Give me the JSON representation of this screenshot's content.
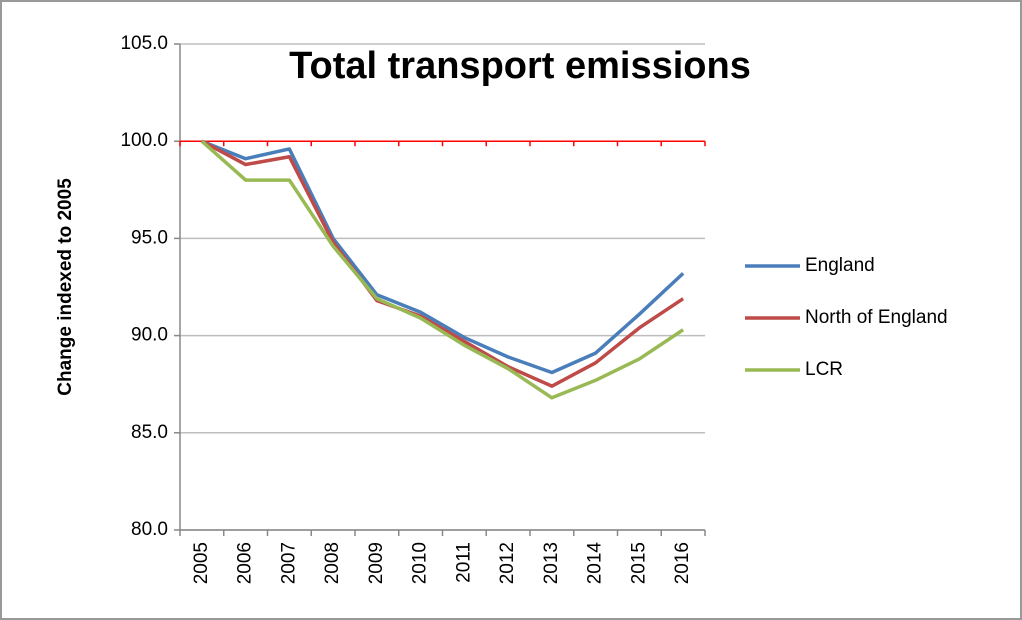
{
  "chart_data": {
    "type": "line",
    "title": "Total transport emissions",
    "y_label": "Change indexed to 2005",
    "categories": [
      "2005",
      "2006",
      "2007",
      "2008",
      "2009",
      "2010",
      "2011",
      "2012",
      "2013",
      "2014",
      "2015",
      "2016"
    ],
    "series": [
      {
        "name": "England",
        "color": "#4a7ebb",
        "values": [
          100,
          99.1,
          99.6,
          95.0,
          92.1,
          91.2,
          89.9,
          88.9,
          88.1,
          89.1,
          91.1,
          93.2
        ]
      },
      {
        "name": "North of England",
        "color": "#be4b48",
        "values": [
          100,
          98.8,
          99.2,
          94.8,
          91.8,
          91.0,
          89.7,
          88.4,
          87.4,
          88.6,
          90.4,
          91.9
        ]
      },
      {
        "name": "LCR",
        "color": "#98b954",
        "values": [
          100,
          98.0,
          98.0,
          94.6,
          91.9,
          90.9,
          89.5,
          88.3,
          86.8,
          87.7,
          88.8,
          90.3
        ]
      }
    ],
    "reference_line": {
      "value": 100,
      "color": "#ff0000"
    },
    "ylim": [
      80,
      105
    ],
    "yticks": [
      {
        "value": 80,
        "label": "80.0"
      },
      {
        "value": 85,
        "label": "85.0"
      },
      {
        "value": 90,
        "label": "90.0"
      },
      {
        "value": 95,
        "label": "95.0"
      },
      {
        "value": 100,
        "label": "100.0"
      },
      {
        "value": 105,
        "label": "105.0"
      }
    ],
    "grid": true,
    "legend": "right"
  }
}
